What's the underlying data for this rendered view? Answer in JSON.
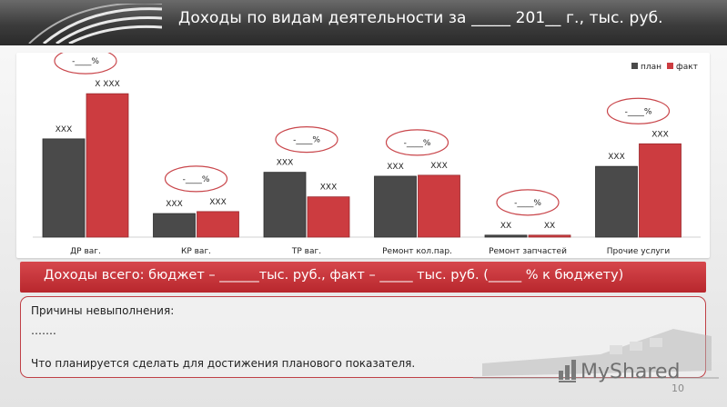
{
  "header": {
    "title": "Доходы по видам деятельности за _____ 201__ г., тыс. руб."
  },
  "chart_data": {
    "type": "bar",
    "categories": [
      "ДР ваг.",
      "КР ваг.",
      "ТР ваг.",
      "Ремонт кол.пар.",
      "Ремонт запчастей",
      "Прочие услуги"
    ],
    "series": [
      {
        "name": "план",
        "values": [
          100,
          24,
          66,
          62,
          2,
          72
        ],
        "labels": [
          "ХХХ",
          "ХХХ",
          "ХХХ",
          "ХХХ",
          "ХХ",
          "ХХХ"
        ]
      },
      {
        "name": "факт",
        "values": [
          146,
          26,
          41,
          63,
          2,
          95
        ],
        "labels": [
          "Х ХХХ",
          "ХХХ",
          "ХХХ",
          "ХХХ",
          "ХХ",
          "ХХХ"
        ]
      }
    ],
    "percent_labels": [
      "-____%",
      "-____%",
      "-____%",
      "-____%",
      "-____%",
      "-____%"
    ],
    "ylim": [
      0,
      160
    ],
    "legend_position": "top-right",
    "colors": {
      "plan": "#4a4a4a",
      "fact": "#cc3c40"
    }
  },
  "total": {
    "text": "Доходы всего: бюджет – ______тыс. руб., факт – _____ тыс. руб.  (_____ % к бюджету)"
  },
  "reasons": {
    "heading": "Причины невыполнения:",
    "placeholder": "…….",
    "plan_text": "Что планируется сделать для достижения планового показателя."
  },
  "watermark": {
    "text": "MyShared"
  },
  "page_number": "10"
}
